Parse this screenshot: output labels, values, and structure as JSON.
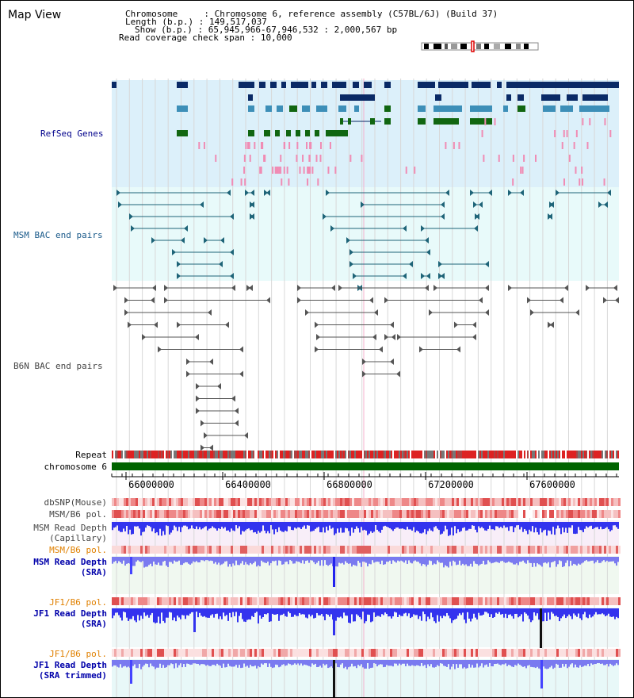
{
  "page": {
    "title": "Map View"
  },
  "header": {
    "lines": [
      {
        "label": "Chromosome",
        "value": "Chromosome 6, reference assembly (C57BL/6J) (Build 37)"
      },
      {
        "label": "Length (b.p.)",
        "value": "149,517,037"
      },
      {
        "label": "Show (b.p.)",
        "value": "65,945,966-67,946,532 : 2,000,567 bp"
      },
      {
        "label": "Read coverage check span",
        "value": "10,000"
      }
    ]
  },
  "view": {
    "start": 65945966,
    "end": 67946532
  },
  "axis": {
    "ticks": [
      "66000000",
      "66400000",
      "66800000",
      "67200000",
      "67600000"
    ]
  },
  "tracks": {
    "refseq_genes": "RefSeq Genes",
    "msm_bac": "MSM BAC end pairs",
    "b6n_bac": "B6N BAC end pairs",
    "repeat": "Repeat",
    "chromosome": "chromosome 6",
    "dbsnp": "dbSNP(Mouse)",
    "msm_b6_pol_1": "MSM/B6 pol.",
    "msm_depth_cap_1": "MSM Read Depth",
    "msm_depth_cap_2": "(Capillary)",
    "msm_b6_pol_2": "MSM/B6 pol.",
    "msm_depth_sra_1": "MSM Read Depth",
    "msm_depth_sra_2": "(SRA)",
    "jf1_b6_pol_1": "JF1/B6 pol.",
    "jf1_depth_sra_1": "JF1 Read Depth",
    "jf1_depth_sra_2": "(SRA)",
    "jf1_b6_pol_2": "JF1/B6 pol.",
    "jf1_depth_trim_1": "JF1 Read Depth",
    "jf1_depth_trim_2": "(SRA trimmed)"
  },
  "colors": {
    "refseq_bg": "#dcf0fa",
    "msm_bg": "#e8fafa",
    "gene_navy": "#0a2a66",
    "gene_steel": "#3d8fb8",
    "gene_green": "#116611",
    "pink": "#f08cb4",
    "msm_line": "#1e6478",
    "b6n_line": "#555555",
    "label_navy": "#00008b",
    "label_teal": "#1a5a8a",
    "label_gray": "#444444",
    "label_orange": "#e08000",
    "label_blue": "#0000aa",
    "chromosome_green": "#006400",
    "depth_blue": "#3333ee",
    "depth_blue_light": "#7a7af0"
  }
}
